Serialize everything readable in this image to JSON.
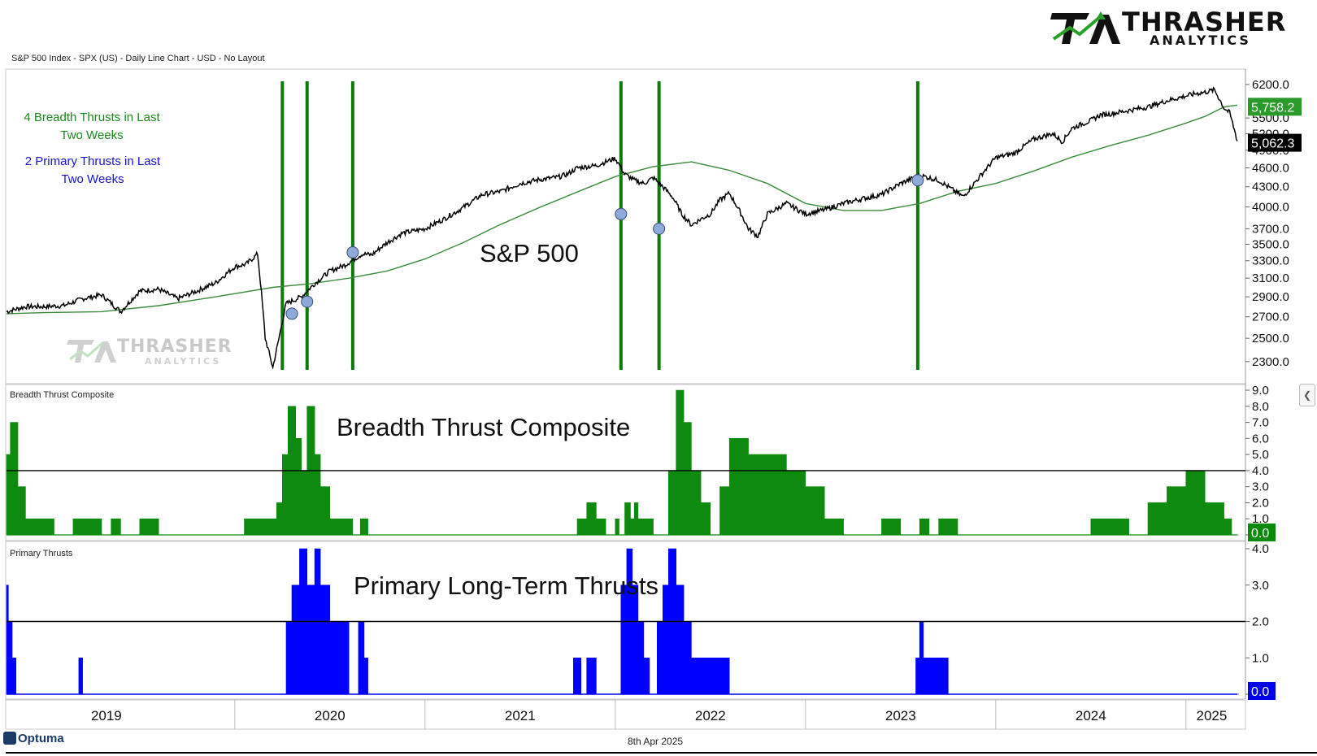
{
  "header": {
    "chart_info": "S&P 500 Index - SPX (US) - Daily Line Chart - USD - No Layout"
  },
  "logo": {
    "brand": "THRASHER",
    "sub": "ANALYTICS",
    "icon": "ta-logo-icon"
  },
  "watermark": {
    "brand": "THRASHER",
    "sub": "ANALYTICS"
  },
  "annotations": {
    "breadth_line1": "4 Breadth Thrusts in Last",
    "breadth_line2": "Two Weeks",
    "primary_line1": "2 Primary Thrusts in Last",
    "primary_line2": "Two Weeks"
  },
  "panels": {
    "price_label": "S&P 500",
    "breadth_title": "Breadth Thrust Composite",
    "breadth_label": "Breadth Thrust Composite",
    "primary_title": "Primary Thrusts",
    "primary_label": "Primary Long-Term Thrusts"
  },
  "footer": {
    "date": "8th Apr 2025",
    "brand": "Optuma"
  },
  "colors": {
    "price_line": "#000000",
    "ma_line": "#3c8c3c",
    "thrust_bar": "#0d7a0d",
    "breadth_fill": "#0e8a0e",
    "primary_fill": "#0000ff",
    "marker": "#8fa9d9",
    "ma_tag": "#2a9a2a",
    "last_tag": "#000000",
    "zero_green_tag": "#0a8a0a",
    "zero_blue_tag": "#0000ee"
  },
  "chart_data": [
    {
      "type": "line",
      "title": "",
      "ylabel": "",
      "scale": "log",
      "ylim": [
        2150,
        6400
      ],
      "yticks": [
        "6200.0",
        "5500.0",
        "5200.0",
        "4900.0",
        "4600.0",
        "4300.0",
        "4000.0",
        "3700.0",
        "3500.0",
        "3300.0",
        "3100.0",
        "2900.0",
        "2700.0",
        "2500.0",
        "2300.0"
      ],
      "x_range": [
        2018.8,
        2025.27
      ],
      "x_tick_labels": [
        "2019",
        "2020",
        "2021",
        "2022",
        "2023",
        "2024",
        "2025"
      ],
      "series": [
        {
          "role": "price",
          "x": [
            2018.8,
            2018.9,
            2019.0,
            2019.1,
            2019.2,
            2019.3,
            2019.4,
            2019.5,
            2019.6,
            2019.7,
            2019.8,
            2019.9,
            2020.0,
            2020.06,
            2020.12,
            2020.16,
            2020.2,
            2020.23,
            2020.27,
            2020.35,
            2020.42,
            2020.5,
            2020.58,
            2020.67,
            2020.72,
            2020.8,
            2020.88,
            2021.0,
            2021.1,
            2021.2,
            2021.3,
            2021.4,
            2021.5,
            2021.6,
            2021.7,
            2021.75,
            2021.8,
            2021.9,
            2022.0,
            2022.05,
            2022.1,
            2022.15,
            2022.2,
            2022.25,
            2022.3,
            2022.35,
            2022.4,
            2022.45,
            2022.5,
            2022.55,
            2022.6,
            2022.65,
            2022.7,
            2022.75,
            2022.8,
            2022.9,
            2023.0,
            2023.1,
            2023.2,
            2023.3,
            2023.4,
            2023.5,
            2023.6,
            2023.7,
            2023.75,
            2023.8,
            2023.83,
            2023.9,
            2024.0,
            2024.1,
            2024.2,
            2024.3,
            2024.35,
            2024.4,
            2024.5,
            2024.55,
            2024.6,
            2024.7,
            2024.8,
            2024.9,
            2025.0,
            2025.05,
            2025.1,
            2025.15,
            2025.2,
            2025.23,
            2025.27
          ],
          "y": [
            2750,
            2800,
            2800,
            2810,
            2880,
            2920,
            2750,
            2960,
            2980,
            2880,
            2960,
            3050,
            3230,
            3260,
            3380,
            2500,
            2250,
            2480,
            2830,
            2900,
            3040,
            3180,
            3250,
            3380,
            3370,
            3520,
            3640,
            3700,
            3830,
            3990,
            4180,
            4230,
            4350,
            4410,
            4450,
            4500,
            4600,
            4640,
            4760,
            4500,
            4400,
            4350,
            4440,
            4300,
            4150,
            3900,
            3750,
            3830,
            3900,
            4100,
            4200,
            3960,
            3700,
            3600,
            3900,
            4050,
            3900,
            3960,
            4050,
            4120,
            4180,
            4350,
            4480,
            4400,
            4300,
            4200,
            4150,
            4400,
            4770,
            4850,
            5100,
            5200,
            5050,
            5300,
            5450,
            5560,
            5580,
            5650,
            5720,
            5850,
            5950,
            6000,
            6030,
            6080,
            5700,
            5600,
            5062.3
          ]
        },
        {
          "role": "moving-average",
          "x": [
            2018.8,
            2019.0,
            2019.3,
            2019.6,
            2019.9,
            2020.2,
            2020.4,
            2020.6,
            2020.8,
            2021.0,
            2021.2,
            2021.4,
            2021.6,
            2021.8,
            2022.0,
            2022.2,
            2022.4,
            2022.6,
            2022.8,
            2023.0,
            2023.2,
            2023.4,
            2023.6,
            2023.8,
            2024.0,
            2024.2,
            2024.4,
            2024.6,
            2024.8,
            2025.0,
            2025.1,
            2025.2,
            2025.27
          ],
          "y": [
            2730,
            2740,
            2750,
            2810,
            2900,
            3000,
            3040,
            3100,
            3180,
            3320,
            3520,
            3760,
            3990,
            4220,
            4460,
            4620,
            4700,
            4560,
            4350,
            4050,
            3950,
            3950,
            4050,
            4230,
            4350,
            4550,
            4780,
            4980,
            5170,
            5400,
            5530,
            5720,
            5758.2
          ]
        }
      ],
      "last_price_label": "5,062.3",
      "ma_label": "5,758.2",
      "breadth_thrust_dates": [
        2020.25,
        2020.38,
        2020.62,
        2022.03,
        2022.23,
        2023.59
      ],
      "thrust_markers": [
        {
          "x": 2020.3,
          "y": 2730
        },
        {
          "x": 2020.38,
          "y": 2850
        },
        {
          "x": 2020.62,
          "y": 3400
        },
        {
          "x": 2022.03,
          "y": 3900
        },
        {
          "x": 2022.23,
          "y": 3700
        },
        {
          "x": 2023.59,
          "y": 4400
        }
      ]
    },
    {
      "type": "area",
      "title": "Breadth Thrust Composite",
      "ylim": [
        0,
        9
      ],
      "yticks": [
        "9.0",
        "8.0",
        "7.0",
        "6.0",
        "5.0",
        "4.0",
        "3.0",
        "2.0",
        "1.0",
        "0.0"
      ],
      "threshold": 4.0,
      "last_value_label": "0.0",
      "series": [
        {
          "name": "Breadth Thrust Composite",
          "x": [
            2018.8,
            2018.82,
            2018.86,
            2018.9,
            2018.95,
            2019.0,
            2019.05,
            2019.15,
            2019.2,
            2019.3,
            2019.35,
            2019.4,
            2019.5,
            2019.6,
            2019.7,
            2019.8,
            2019.9,
            2019.95,
            2020.0,
            2020.05,
            2020.1,
            2020.15,
            2020.2,
            2020.22,
            2020.25,
            2020.28,
            2020.32,
            2020.35,
            2020.38,
            2020.42,
            2020.45,
            2020.5,
            2020.55,
            2020.6,
            2020.62,
            2020.66,
            2020.7,
            2020.75,
            2020.8,
            2020.9,
            2021.0,
            2021.1,
            2021.2,
            2021.4,
            2021.6,
            2021.7,
            2021.75,
            2021.8,
            2021.85,
            2021.9,
            2021.95,
            2022.0,
            2022.02,
            2022.05,
            2022.08,
            2022.1,
            2022.12,
            2022.15,
            2022.2,
            2022.23,
            2022.28,
            2022.32,
            2022.36,
            2022.4,
            2022.45,
            2022.5,
            2022.55,
            2022.6,
            2022.7,
            2022.8,
            2022.9,
            2023.0,
            2023.1,
            2023.2,
            2023.4,
            2023.5,
            2023.55,
            2023.6,
            2023.65,
            2023.7,
            2023.8,
            2023.9,
            2024.0,
            2024.1,
            2024.2,
            2024.3,
            2024.4,
            2024.5,
            2024.6,
            2024.7,
            2024.8,
            2024.9,
            2025.0,
            2025.1,
            2025.2,
            2025.24,
            2025.27
          ],
          "y": [
            5,
            7,
            3,
            1,
            1,
            1,
            0,
            1,
            1,
            0,
            1,
            0,
            1,
            0,
            0,
            0,
            0,
            0,
            0,
            1,
            1,
            1,
            1,
            2,
            5,
            8,
            6,
            4,
            8,
            5,
            3,
            1,
            1,
            1,
            0,
            1,
            0,
            0,
            0,
            0,
            0,
            0,
            0,
            0,
            0,
            0,
            0,
            1,
            2,
            1,
            0,
            1,
            0,
            2,
            1,
            2,
            1,
            1,
            0,
            0,
            4,
            9,
            7,
            4,
            2,
            0,
            3,
            6,
            5,
            5,
            4,
            3,
            1,
            0,
            1,
            0,
            0,
            1,
            0,
            1,
            0,
            0,
            0,
            0,
            0,
            0,
            0,
            1,
            1,
            0,
            2,
            3,
            4,
            2,
            1,
            0,
            0
          ]
        }
      ]
    },
    {
      "type": "area",
      "title": "Primary Thrusts",
      "ylim": [
        0,
        4
      ],
      "yticks": [
        "4.0",
        "3.0",
        "2.0",
        "1.0",
        "0.0"
      ],
      "threshold": 2.0,
      "last_value_label": "0.0",
      "series": [
        {
          "name": "Primary Thrusts",
          "x": [
            2018.8,
            2018.81,
            2018.83,
            2018.85,
            2018.88,
            2019.0,
            2019.1,
            2019.14,
            2019.18,
            2019.2,
            2019.3,
            2019.5,
            2019.7,
            2019.95,
            2020.0,
            2020.05,
            2020.1,
            2020.12,
            2020.15,
            2020.2,
            2020.22,
            2020.24,
            2020.27,
            2020.3,
            2020.34,
            2020.38,
            2020.42,
            2020.45,
            2020.5,
            2020.6,
            2020.62,
            2020.65,
            2020.68,
            2020.7,
            2020.8,
            2021.0,
            2021.2,
            2021.4,
            2021.6,
            2021.7,
            2021.72,
            2021.75,
            2021.78,
            2021.82,
            2021.85,
            2021.9,
            2022.0,
            2022.03,
            2022.06,
            2022.09,
            2022.12,
            2022.15,
            2022.18,
            2022.2,
            2022.22,
            2022.25,
            2022.28,
            2022.32,
            2022.36,
            2022.4,
            2022.45,
            2022.5,
            2022.55,
            2022.6,
            2022.7,
            2022.8,
            2022.9,
            2023.0,
            2023.2,
            2023.4,
            2023.55,
            2023.58,
            2023.6,
            2023.62,
            2023.65,
            2023.7,
            2023.75,
            2023.8,
            2024.0,
            2024.5,
            2025.0,
            2025.27
          ],
          "y": [
            3,
            2,
            1,
            0,
            0,
            0,
            0,
            0,
            1,
            0,
            0,
            0,
            0,
            0,
            0,
            0,
            0,
            0,
            0,
            0,
            0,
            0,
            2,
            3,
            4,
            3,
            4,
            3,
            2,
            0,
            0,
            2,
            1,
            0,
            0,
            0,
            0,
            0,
            0,
            0,
            0,
            0,
            1,
            0,
            1,
            0,
            0,
            3,
            4,
            3,
            2,
            1,
            0,
            0,
            2,
            3,
            4,
            3,
            2,
            1,
            1,
            1,
            1,
            0,
            0,
            0,
            0,
            0,
            0,
            0,
            0,
            1,
            2,
            1,
            1,
            1,
            0,
            0,
            0,
            0,
            0,
            0
          ]
        }
      ]
    }
  ]
}
